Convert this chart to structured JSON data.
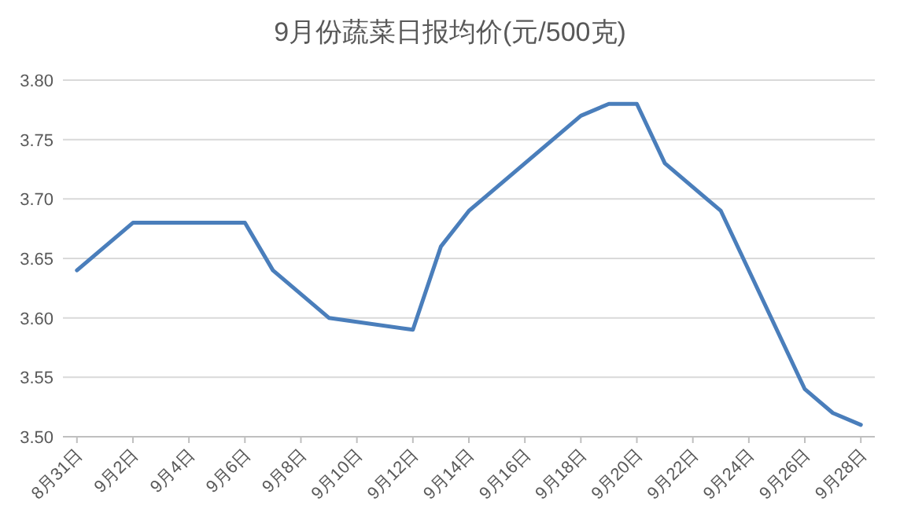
{
  "chart_data": {
    "type": "line",
    "title": "9月份蔬菜日报均价(元/500克)",
    "x": [
      "--08-31",
      "--09-02",
      "--09-06",
      "--09-07",
      "--09-09",
      "--09-12",
      "--09-13",
      "--09-14",
      "--09-18",
      "--09-19",
      "--09-20",
      "--09-21",
      "--09-23",
      "--09-26",
      "--09-27",
      "--09-28"
    ],
    "series": [
      {
        "color": "#4a7ebb",
        "values": [
          3.64,
          3.68,
          3.68,
          3.64,
          3.6,
          3.59,
          3.66,
          3.69,
          3.77,
          3.78,
          3.78,
          3.73,
          3.69,
          3.54,
          3.52,
          3.51
        ]
      }
    ],
    "xlim": [
      "--08-30T12:00",
      "--09-28T12:00"
    ],
    "xticks": [
      {
        "value": "--08-31",
        "label": "8月31日"
      },
      {
        "value": "--09-02",
        "label": "9月2日"
      },
      {
        "value": "--09-04",
        "label": "9月4日"
      },
      {
        "value": "--09-06",
        "label": "9月6日"
      },
      {
        "value": "--09-08",
        "label": "9月8日"
      },
      {
        "value": "--09-10",
        "label": "9月10日"
      },
      {
        "value": "--09-12",
        "label": "9月12日"
      },
      {
        "value": "--09-14",
        "label": "9月14日"
      },
      {
        "value": "--09-16",
        "label": "9月16日"
      },
      {
        "value": "--09-18",
        "label": "9月18日"
      },
      {
        "value": "--09-20",
        "label": "9月20日"
      },
      {
        "value": "--09-22",
        "label": "9月22日"
      },
      {
        "value": "--09-24",
        "label": "9月24日"
      },
      {
        "value": "--09-26",
        "label": "9月26日"
      },
      {
        "value": "--09-28",
        "label": "9月28日"
      }
    ],
    "ylim": [
      3.5,
      3.8
    ],
    "yticks": [
      {
        "value": 3.5,
        "label": "3.50"
      },
      {
        "value": 3.55,
        "label": "3.55"
      },
      {
        "value": 3.6,
        "label": "3.60"
      },
      {
        "value": 3.65,
        "label": "3.65"
      },
      {
        "value": 3.7,
        "label": "3.70"
      },
      {
        "value": 3.75,
        "label": "3.75"
      },
      {
        "value": 3.8,
        "label": "3.80"
      }
    ],
    "grid": "y",
    "marker": "none",
    "line_style": "solid"
  }
}
